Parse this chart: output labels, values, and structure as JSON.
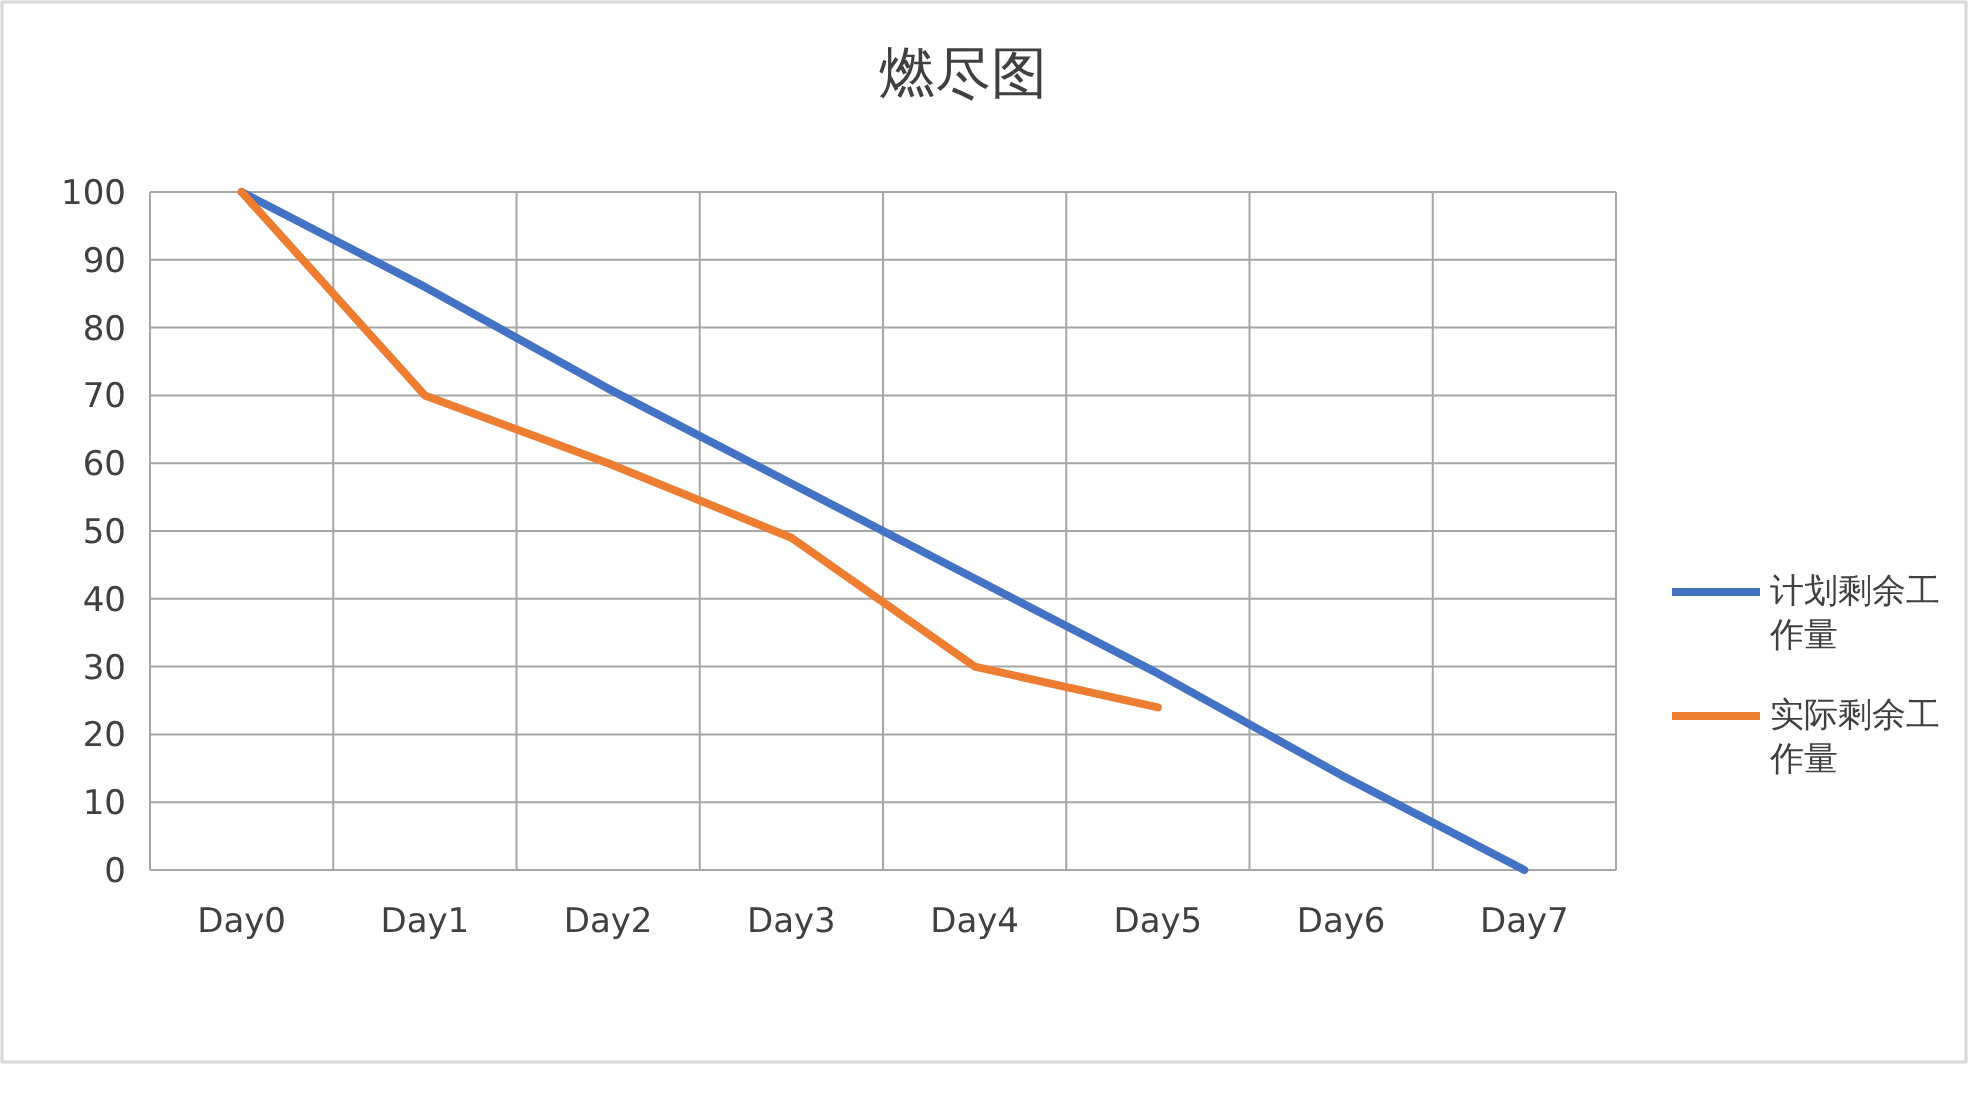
{
  "chart_data": {
    "type": "line",
    "title": "燃尽图",
    "categories": [
      "Day0",
      "Day1",
      "Day2",
      "Day3",
      "Day4",
      "Day5",
      "Day6",
      "Day7"
    ],
    "series": [
      {
        "name": "计划剩余工作量",
        "color": "#4472c4",
        "values": [
          100,
          86,
          71,
          57,
          43,
          29,
          14,
          0
        ]
      },
      {
        "name": "实际剩余工作量",
        "color": "#ed7d31",
        "values": [
          100,
          70,
          60,
          49,
          30,
          24,
          null,
          null
        ]
      }
    ],
    "ylim": [
      0,
      100
    ],
    "yticks": [
      0,
      10,
      20,
      30,
      40,
      50,
      60,
      70,
      80,
      90,
      100
    ],
    "grid": true,
    "legend": "right",
    "marker": "none",
    "line_style": "solid"
  }
}
